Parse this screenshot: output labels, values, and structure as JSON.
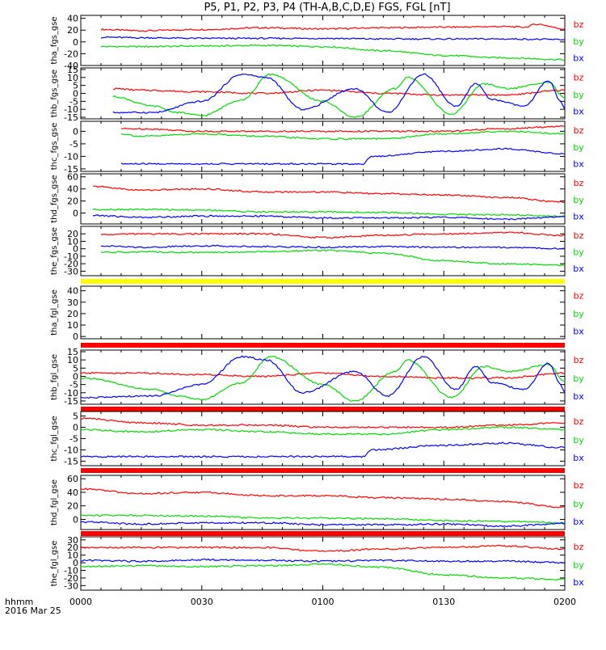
{
  "title": "P5, P1, P2, P3, P4 (TH-A,B,C,D,E) FGS, FGL [nT]",
  "time_axis": {
    "type": "time",
    "range": [
      "0000",
      "0200"
    ],
    "ticks": [
      "0000",
      "0030",
      "0100",
      "0130",
      "0200"
    ],
    "label": "hhmm",
    "date": "2016 Mar 25"
  },
  "colors": {
    "bx": "#0000ff",
    "by": "#00dd00",
    "bz": "#ff0000",
    "flag_yellow": "#ffff00",
    "flag_red": "#ff0000",
    "gap_bar": "#000000"
  },
  "chart_data": [
    {
      "type": "line",
      "ylabel": "tha_fgs_gse",
      "ylim": [
        -40,
        45
      ],
      "yticks": [
        40,
        20,
        0,
        -20,
        -40
      ],
      "series": [
        {
          "name": "bz",
          "x": [
            "0005",
            "0015",
            "0030",
            "0045",
            "0100",
            "0115",
            "0130",
            "0145",
            "0150",
            "0153",
            "0200"
          ],
          "values": [
            21,
            19,
            21,
            24,
            22,
            24,
            25,
            26,
            25,
            30,
            22
          ]
        },
        {
          "name": "by",
          "x": [
            "0005",
            "0015",
            "0030",
            "0045",
            "0100",
            "0115",
            "0130",
            "0145",
            "0200"
          ],
          "values": [
            -8,
            -8,
            -7,
            -6,
            -8,
            -15,
            -23,
            -27,
            -30
          ]
        },
        {
          "name": "bx",
          "x": [
            "0005",
            "0015",
            "0030",
            "0045",
            "0100",
            "0115",
            "0130",
            "0145",
            "0200"
          ],
          "values": [
            8,
            7,
            6,
            6,
            6,
            5,
            5,
            5,
            4
          ]
        }
      ]
    },
    {
      "type": "line",
      "ylabel": "thb_fgs_gse",
      "ylim": [
        -16,
        16
      ],
      "yticks": [
        15,
        10,
        5,
        0,
        -5,
        -10,
        -15
      ],
      "series": [
        {
          "name": "bz",
          "x": [
            "0008",
            "0015",
            "0030",
            "0045",
            "0100",
            "0115",
            "0130",
            "0145",
            "0200"
          ],
          "values": [
            3,
            2,
            1,
            0,
            2,
            0,
            -1,
            -1,
            2
          ]
        },
        {
          "name": "by",
          "x": [
            "0008",
            "0018",
            "0024",
            "0030",
            "0040",
            "0047",
            "0100",
            "0108",
            "0118",
            "0121",
            "0132",
            "0140",
            "0146",
            "0156",
            "0200"
          ],
          "values": [
            -2,
            -8,
            -12,
            -14,
            -4,
            12,
            -5,
            -15,
            3,
            10,
            -13,
            6,
            3,
            7,
            -3
          ]
        },
        {
          "name": "bx",
          "x": [
            "0008",
            "0018",
            "0030",
            "0040",
            "0046",
            "0055",
            "0108",
            "0116",
            "0125",
            "0133",
            "0138",
            "0142",
            "0150",
            "0156",
            "0159",
            "0200"
          ],
          "values": [
            -12,
            -12,
            -5,
            12,
            10,
            -10,
            3,
            -12,
            12,
            -8,
            6,
            -4,
            -8,
            8,
            -5,
            -10
          ]
        }
      ]
    },
    {
      "type": "line",
      "ylabel": "thc_fgs_gse",
      "ylim": [
        -16,
        4
      ],
      "yticks": [
        0,
        -5,
        -10,
        -15
      ],
      "series": [
        {
          "name": "bz",
          "x": [
            "0010",
            "0015",
            "0030",
            "0045",
            "0100",
            "0115",
            "0130",
            "0145",
            "0200"
          ],
          "values": [
            1,
            1,
            0,
            0,
            0,
            0,
            0,
            1,
            2
          ]
        },
        {
          "name": "by",
          "x": [
            "0010",
            "0015",
            "0030",
            "0045",
            "0100",
            "0115",
            "0130",
            "0145",
            "0200"
          ],
          "values": [
            -1,
            -2,
            -1,
            -2,
            -3,
            -3,
            -1,
            0,
            -1
          ]
        },
        {
          "name": "bx",
          "x": [
            "0010",
            "0030",
            "0100",
            "0110",
            "0112",
            "0130",
            "0145",
            "0200"
          ],
          "values": [
            -13,
            -13,
            -13,
            -13,
            -10,
            -8,
            -7,
            -9
          ]
        }
      ]
    },
    {
      "type": "line",
      "ylabel": "thd_fgs_gse",
      "ylim": [
        -18,
        65
      ],
      "yticks": [
        60,
        40,
        20,
        0
      ],
      "series": [
        {
          "name": "bz",
          "x": [
            "0003",
            "0015",
            "0030",
            "0045",
            "0100",
            "0115",
            "0130",
            "0145",
            "0200"
          ],
          "values": [
            44,
            38,
            40,
            35,
            35,
            32,
            30,
            26,
            18
          ]
        },
        {
          "name": "by",
          "x": [
            "0003",
            "0015",
            "0030",
            "0045",
            "0100",
            "0115",
            "0130",
            "0145",
            "0200"
          ],
          "values": [
            6,
            6,
            5,
            2,
            2,
            1,
            -2,
            -3,
            -5
          ]
        },
        {
          "name": "bx",
          "x": [
            "0003",
            "0015",
            "0030",
            "0045",
            "0100",
            "0115",
            "0130",
            "0145",
            "0200"
          ],
          "values": [
            -4,
            -7,
            -5,
            -5,
            -8,
            -8,
            -7,
            -10,
            -6
          ]
        }
      ]
    },
    {
      "type": "line",
      "ylabel": "the_fgs_gse",
      "ylim": [
        -36,
        30
      ],
      "yticks": [
        20,
        10,
        0,
        -10,
        -20,
        -30
      ],
      "series": [
        {
          "name": "bz",
          "x": [
            "0005",
            "0015",
            "0030",
            "0045",
            "0100",
            "0115",
            "0130",
            "0145",
            "0200"
          ],
          "values": [
            19,
            20,
            20,
            20,
            15,
            18,
            20,
            22,
            18
          ]
        },
        {
          "name": "by",
          "x": [
            "0005",
            "0015",
            "0030",
            "0045",
            "0100",
            "0115",
            "0130",
            "0145",
            "0200"
          ],
          "values": [
            -5,
            -4,
            -5,
            -4,
            -2,
            -6,
            -16,
            -20,
            -22
          ]
        },
        {
          "name": "bx",
          "x": [
            "0005",
            "0015",
            "0030",
            "0045",
            "0100",
            "0115",
            "0130",
            "0145",
            "0200"
          ],
          "values": [
            4,
            2,
            4,
            3,
            2,
            3,
            2,
            2,
            0
          ]
        }
      ]
    },
    {
      "type": "line",
      "ylabel": "tha_fgl_gse",
      "ylim": [
        -2,
        44
      ],
      "yticks": [
        40,
        30,
        20,
        10,
        0
      ],
      "series": []
    },
    {
      "type": "line",
      "ylabel": "thb_fgl_gse",
      "ylim": [
        -17,
        16
      ],
      "yticks": [
        15,
        10,
        5,
        0,
        -5,
        -10,
        -15
      ],
      "series": [
        {
          "name": "bz",
          "x": [
            "0000",
            "0015",
            "0030",
            "0045",
            "0100",
            "0115",
            "0130",
            "0145",
            "0200"
          ],
          "values": [
            2,
            2,
            1,
            0,
            2,
            0,
            -1,
            -1,
            2
          ]
        },
        {
          "name": "by",
          "x": [
            "0000",
            "0018",
            "0024",
            "0030",
            "0040",
            "0047",
            "0100",
            "0108",
            "0118",
            "0121",
            "0132",
            "0140",
            "0146",
            "0156",
            "0200"
          ],
          "values": [
            -1,
            -8,
            -12,
            -14,
            -4,
            12,
            -5,
            -15,
            3,
            10,
            -13,
            6,
            3,
            7,
            -3
          ]
        },
        {
          "name": "bx",
          "x": [
            "0000",
            "0018",
            "0030",
            "0040",
            "0046",
            "0055",
            "0108",
            "0116",
            "0125",
            "0133",
            "0138",
            "0142",
            "0150",
            "0156",
            "0159",
            "0200"
          ],
          "values": [
            -13,
            -12,
            -5,
            12,
            10,
            -10,
            3,
            -12,
            12,
            -8,
            6,
            -4,
            -8,
            8,
            -5,
            -10
          ]
        }
      ]
    },
    {
      "type": "line",
      "ylabel": "thc_fgl_gse",
      "ylim": [
        -17,
        7
      ],
      "yticks": [
        5,
        0,
        -5,
        -10,
        -15
      ],
      "series": [
        {
          "name": "bz",
          "x": [
            "0000",
            "0015",
            "0030",
            "0045",
            "0100",
            "0115",
            "0130",
            "0145",
            "0200"
          ],
          "values": [
            4,
            2,
            1,
            1,
            0,
            0,
            0,
            1,
            2
          ]
        },
        {
          "name": "by",
          "x": [
            "0000",
            "0015",
            "0030",
            "0045",
            "0100",
            "0115",
            "0130",
            "0145",
            "0200"
          ],
          "values": [
            -1,
            -2,
            -1,
            -2,
            -3,
            -3,
            -1,
            0,
            -1
          ]
        },
        {
          "name": "bx",
          "x": [
            "0000",
            "0030",
            "0100",
            "0110",
            "0112",
            "0130",
            "0145",
            "0200"
          ],
          "values": [
            -13,
            -13,
            -13,
            -13,
            -10,
            -8,
            -7,
            -9
          ]
        }
      ]
    },
    {
      "type": "line",
      "ylabel": "thd_fgl_gse",
      "ylim": [
        -15,
        65
      ],
      "yticks": [
        60,
        40,
        20,
        0
      ],
      "series": [
        {
          "name": "bz",
          "x": [
            "0000",
            "0015",
            "0030",
            "0045",
            "0100",
            "0115",
            "0130",
            "0145",
            "0200"
          ],
          "values": [
            45,
            38,
            40,
            35,
            35,
            32,
            30,
            26,
            18
          ]
        },
        {
          "name": "by",
          "x": [
            "0000",
            "0015",
            "0030",
            "0045",
            "0100",
            "0115",
            "0130",
            "0145",
            "0200"
          ],
          "values": [
            6,
            6,
            5,
            2,
            2,
            1,
            -2,
            -3,
            -5
          ]
        },
        {
          "name": "bx",
          "x": [
            "0000",
            "0015",
            "0030",
            "0045",
            "0100",
            "0115",
            "0130",
            "0145",
            "0200"
          ],
          "values": [
            -4,
            -7,
            -5,
            -5,
            -8,
            -8,
            -7,
            -10,
            -6
          ]
        }
      ]
    },
    {
      "type": "line",
      "ylabel": "the_fgl_gse",
      "ylim": [
        -36,
        34
      ],
      "yticks": [
        30,
        20,
        10,
        0,
        -10,
        -20,
        -30
      ],
      "series": [
        {
          "name": "bz",
          "x": [
            "0000",
            "0015",
            "0030",
            "0045",
            "0100",
            "0115",
            "0130",
            "0145",
            "0200"
          ],
          "values": [
            20,
            20,
            20,
            20,
            15,
            18,
            20,
            22,
            18
          ]
        },
        {
          "name": "by",
          "x": [
            "0000",
            "0015",
            "0030",
            "0045",
            "0100",
            "0115",
            "0130",
            "0145",
            "0200"
          ],
          "values": [
            -5,
            -4,
            -5,
            -4,
            -2,
            -6,
            -16,
            -20,
            -22
          ]
        },
        {
          "name": "bx",
          "x": [
            "0000",
            "0015",
            "0030",
            "0045",
            "0100",
            "0115",
            "0130",
            "0145",
            "0200"
          ],
          "values": [
            3,
            2,
            4,
            3,
            2,
            3,
            2,
            2,
            0
          ]
        }
      ]
    }
  ],
  "legend": [
    "bz",
    "by",
    "bx"
  ]
}
